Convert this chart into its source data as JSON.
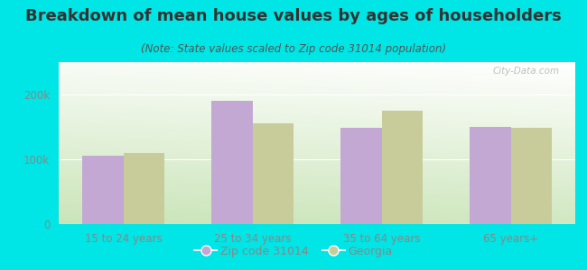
{
  "title": "Breakdown of mean house values by ages of householders",
  "subtitle": "(Note: State values scaled to Zip code 31014 population)",
  "categories": [
    "15 to 24 years",
    "25 to 34 years",
    "35 to 64 years",
    "65 years+"
  ],
  "zip_values": [
    105000,
    190000,
    148000,
    150000
  ],
  "georgia_values": [
    110000,
    155000,
    175000,
    148000
  ],
  "zip_color": "#c4a8d4",
  "georgia_color": "#c8cc9a",
  "background_color": "#00e5e5",
  "plot_bg_top_left": "#e8f5e0",
  "plot_bg_top_right": "#ffffff",
  "plot_bg_bottom": "#d0e8c0",
  "ylim": [
    0,
    250000
  ],
  "ytick_vals": [
    0,
    100000,
    200000
  ],
  "ytick_labels": [
    "0",
    "100k",
    "200k"
  ],
  "legend_zip_label": "Zip code 31014",
  "legend_georgia_label": "Georgia",
  "bar_width": 0.32,
  "title_fontsize": 13,
  "subtitle_fontsize": 8.5,
  "tick_fontsize": 8.5,
  "legend_fontsize": 9,
  "title_color": "#333333",
  "subtitle_color": "#555555",
  "tick_color": "#888888",
  "watermark": "City-Data.com"
}
